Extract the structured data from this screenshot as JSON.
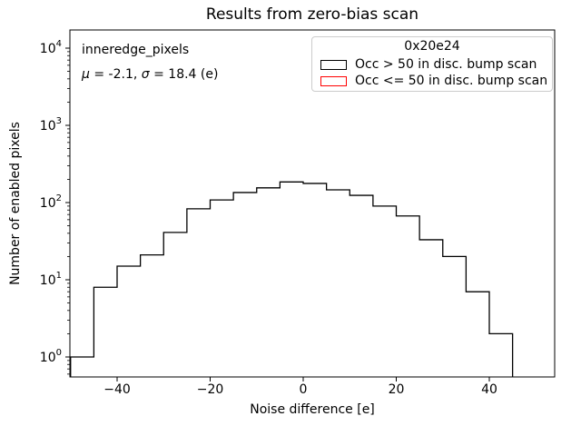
{
  "figure": {
    "title": "Results from zero-bias scan"
  },
  "axes": {
    "xlabel": "Noise difference [e]",
    "ylabel": "Number of enabled pixels",
    "xticks": [
      {
        "value": -40,
        "label": "−40"
      },
      {
        "value": -20,
        "label": "−20"
      },
      {
        "value": 0,
        "label": "0"
      },
      {
        "value": 20,
        "label": "20"
      },
      {
        "value": 40,
        "label": "40"
      }
    ],
    "ytick_exponents": [
      0,
      1,
      2,
      3,
      4
    ],
    "xlim": [
      -50.1,
      54.0
    ],
    "ylim": [
      0.55,
      17000
    ],
    "yscale": "log"
  },
  "annotations": {
    "line1": "inneredge_pixels",
    "line2_segments": [
      {
        "text": "μ",
        "italic": true
      },
      {
        "text": " = -2.1, ",
        "italic": false
      },
      {
        "text": "σ",
        "italic": true
      },
      {
        "text": " = 18.4 (e)",
        "italic": false
      }
    ]
  },
  "legend": {
    "title": "0x20e24",
    "entries": [
      {
        "label": "Occ > 50 in disc. bump scan",
        "color": "#000000"
      },
      {
        "label": "Occ <= 50 in disc. bump scan",
        "color": "#ff0000"
      }
    ]
  },
  "chart_data": {
    "type": "histogram",
    "title": "Results from zero-bias scan",
    "xlabel": "Noise difference [e]",
    "ylabel": "Number of enabled pixels",
    "yscale": "log",
    "xlim": [
      -50.1,
      54.0
    ],
    "ylim": [
      0.55,
      17000
    ],
    "legend_position": "upper right",
    "bin_edges": [
      -50,
      -45,
      -40,
      -35,
      -30,
      -25,
      -20,
      -15,
      -10,
      -5,
      0,
      5,
      10,
      15,
      20,
      25,
      30,
      35,
      40,
      45
    ],
    "series": [
      {
        "name": "Occ > 50 in disc. bump scan",
        "color": "#000000",
        "counts": [
          1,
          8,
          15,
          21,
          41,
          83,
          108,
          135,
          155,
          185,
          177,
          146,
          124,
          90,
          67,
          33,
          20,
          7,
          2
        ]
      },
      {
        "name": "Occ <= 50 in disc. bump scan",
        "color": "#ff0000",
        "counts": []
      }
    ],
    "stats": {
      "dataset": "inneredge_pixels",
      "mu": -2.1,
      "sigma": 18.4,
      "unit": "e",
      "chip_id": "0x20e24"
    }
  }
}
